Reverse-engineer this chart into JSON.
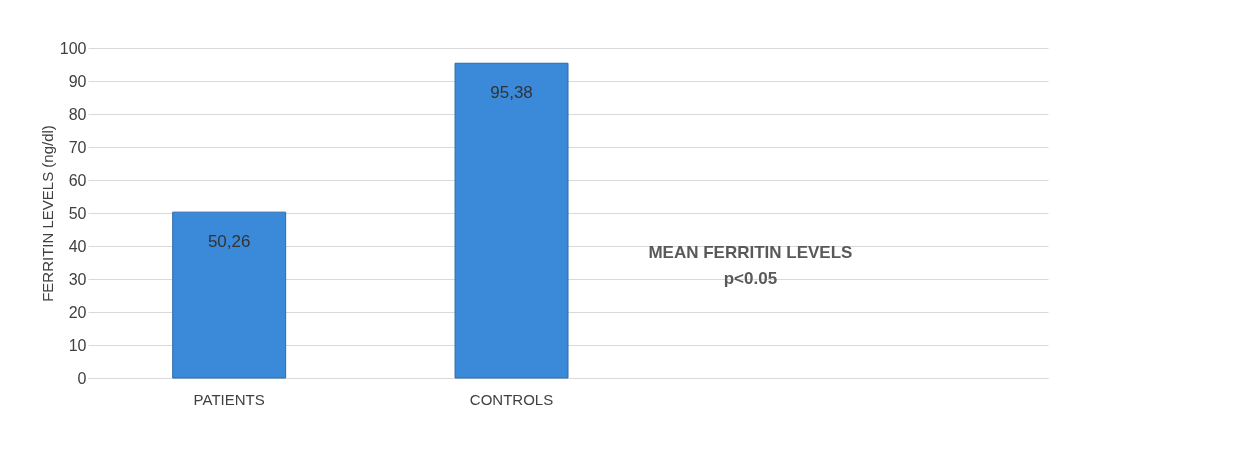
{
  "chart_data": {
    "type": "bar",
    "ylabel": "FERRITIN LEVELS (ng/dl)",
    "categories": [
      "PATIENTS",
      "CONTROLS"
    ],
    "values": [
      50.26,
      95.38
    ],
    "value_labels": [
      "50,26",
      "95,38"
    ],
    "color": "#3a8ad9",
    "ylim": [
      0,
      100
    ],
    "yticks": [
      0,
      10,
      20,
      30,
      40,
      50,
      60,
      70,
      80,
      90,
      100
    ],
    "grid": "y",
    "annotations": [
      "MEAN FERRITIN LEVELS",
      "p<0.05"
    ]
  }
}
